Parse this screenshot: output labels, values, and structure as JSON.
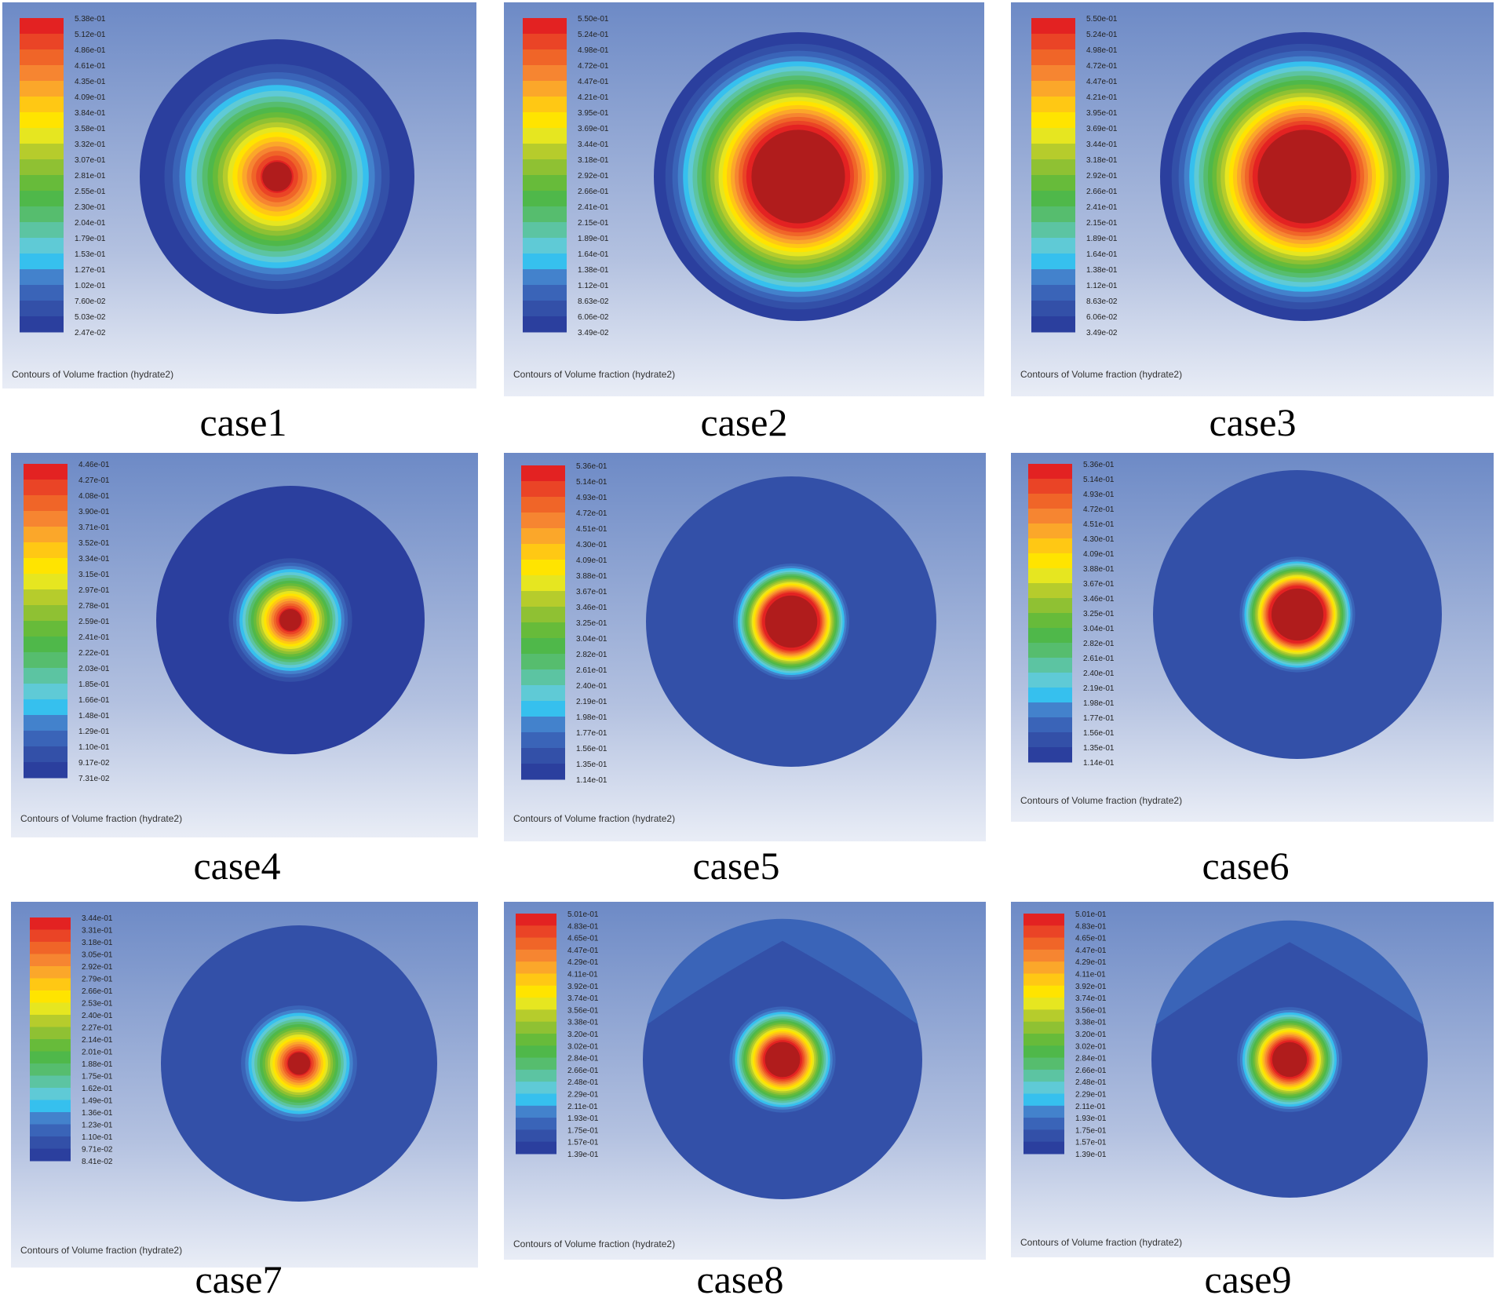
{
  "footer_text": "Contours of Volume fraction (hydrate2)",
  "colormap": [
    "#2b3f9e",
    "#3350a8",
    "#3a64b8",
    "#4382cc",
    "#36c0ee",
    "#5fcad6",
    "#5cc4a2",
    "#56bd6e",
    "#4fb84a",
    "#67bb3a",
    "#8fc133",
    "#b6cc2c",
    "#e6e620",
    "#ffe400",
    "#ffc814",
    "#fba72a",
    "#f68531",
    "#f06528",
    "#ea4426",
    "#e32222"
  ],
  "colors": {
    "outside_field": "#2a3b94",
    "panel_top": "#6d8ac6",
    "panel_bottom": "#e9edf6",
    "core": "#b01c1c"
  },
  "panels": [
    {
      "title": "case1",
      "legend": [
        "5.38e-01",
        "5.12e-01",
        "4.86e-01",
        "4.61e-01",
        "4.35e-01",
        "4.09e-01",
        "3.84e-01",
        "3.58e-01",
        "3.32e-01",
        "3.07e-01",
        "2.81e-01",
        "2.55e-01",
        "2.30e-01",
        "2.04e-01",
        "1.79e-01",
        "1.53e-01",
        "1.27e-01",
        "1.02e-01",
        "7.60e-02",
        "5.03e-02",
        "2.47e-02"
      ],
      "core_fraction": 0.12,
      "plume_fraction": 0.82,
      "outer_field_level": 0
    },
    {
      "title": "case2",
      "legend": [
        "5.50e-01",
        "5.24e-01",
        "4.98e-01",
        "4.72e-01",
        "4.47e-01",
        "4.21e-01",
        "3.95e-01",
        "3.69e-01",
        "3.44e-01",
        "3.18e-01",
        "2.92e-01",
        "2.66e-01",
        "2.41e-01",
        "2.15e-01",
        "1.89e-01",
        "1.64e-01",
        "1.38e-01",
        "1.12e-01",
        "8.63e-02",
        "6.06e-02",
        "3.49e-02"
      ],
      "core_fraction": 0.36,
      "plume_fraction": 0.92,
      "outer_field_level": 0
    },
    {
      "title": "case3",
      "legend": [
        "5.50e-01",
        "5.24e-01",
        "4.98e-01",
        "4.72e-01",
        "4.47e-01",
        "4.21e-01",
        "3.95e-01",
        "3.69e-01",
        "3.44e-01",
        "3.18e-01",
        "2.92e-01",
        "2.66e-01",
        "2.41e-01",
        "2.15e-01",
        "1.89e-01",
        "1.64e-01",
        "1.38e-01",
        "1.12e-01",
        "8.63e-02",
        "6.06e-02",
        "3.49e-02"
      ],
      "core_fraction": 0.36,
      "plume_fraction": 0.92,
      "outer_field_level": 0
    },
    {
      "title": "case4",
      "legend": [
        "4.46e-01",
        "4.27e-01",
        "4.08e-01",
        "3.90e-01",
        "3.71e-01",
        "3.52e-01",
        "3.34e-01",
        "3.15e-01",
        "2.97e-01",
        "2.78e-01",
        "2.59e-01",
        "2.41e-01",
        "2.22e-01",
        "2.03e-01",
        "1.85e-01",
        "1.66e-01",
        "1.48e-01",
        "1.29e-01",
        "1.10e-01",
        "9.17e-02",
        "7.31e-02"
      ],
      "core_fraction": 0.09,
      "plume_fraction": 0.46,
      "outer_field_level": 0
    },
    {
      "title": "case5",
      "legend": [
        "5.36e-01",
        "5.14e-01",
        "4.93e-01",
        "4.72e-01",
        "4.51e-01",
        "4.30e-01",
        "4.09e-01",
        "3.88e-01",
        "3.67e-01",
        "3.46e-01",
        "3.25e-01",
        "3.04e-01",
        "2.82e-01",
        "2.61e-01",
        "2.40e-01",
        "2.19e-01",
        "1.98e-01",
        "1.77e-01",
        "1.56e-01",
        "1.35e-01",
        "1.14e-01"
      ],
      "core_fraction": 0.2,
      "plume_fraction": 0.4,
      "outer_field_level": 1
    },
    {
      "title": "case6",
      "legend": [
        "5.36e-01",
        "5.14e-01",
        "4.93e-01",
        "4.72e-01",
        "4.51e-01",
        "4.30e-01",
        "4.09e-01",
        "3.88e-01",
        "3.67e-01",
        "3.46e-01",
        "3.25e-01",
        "3.04e-01",
        "2.82e-01",
        "2.61e-01",
        "2.40e-01",
        "2.19e-01",
        "1.98e-01",
        "1.77e-01",
        "1.56e-01",
        "1.35e-01",
        "1.14e-01"
      ],
      "core_fraction": 0.2,
      "plume_fraction": 0.4,
      "outer_field_level": 1
    },
    {
      "title": "case7",
      "legend": [
        "3.44e-01",
        "3.31e-01",
        "3.18e-01",
        "3.05e-01",
        "2.92e-01",
        "2.79e-01",
        "2.66e-01",
        "2.53e-01",
        "2.40e-01",
        "2.27e-01",
        "2.14e-01",
        "2.01e-01",
        "1.88e-01",
        "1.75e-01",
        "1.62e-01",
        "1.49e-01",
        "1.36e-01",
        "1.23e-01",
        "1.10e-01",
        "9.71e-02",
        "8.41e-02"
      ],
      "core_fraction": 0.09,
      "plume_fraction": 0.42,
      "outer_field_level": 1
    },
    {
      "title": "case8",
      "legend": [
        "5.01e-01",
        "4.83e-01",
        "4.65e-01",
        "4.47e-01",
        "4.29e-01",
        "4.11e-01",
        "3.92e-01",
        "3.74e-01",
        "3.56e-01",
        "3.38e-01",
        "3.20e-01",
        "3.02e-01",
        "2.84e-01",
        "2.66e-01",
        "2.48e-01",
        "2.29e-01",
        "2.11e-01",
        "1.93e-01",
        "1.75e-01",
        "1.57e-01",
        "1.39e-01"
      ],
      "core_fraction": 0.14,
      "plume_fraction": 0.38,
      "outer_field_level": 1,
      "cap_level": 2
    },
    {
      "title": "case9",
      "legend": [
        "5.01e-01",
        "4.83e-01",
        "4.65e-01",
        "4.47e-01",
        "4.29e-01",
        "4.11e-01",
        "3.92e-01",
        "3.74e-01",
        "3.56e-01",
        "3.38e-01",
        "3.20e-01",
        "3.02e-01",
        "2.84e-01",
        "2.66e-01",
        "2.48e-01",
        "2.29e-01",
        "2.11e-01",
        "1.93e-01",
        "1.75e-01",
        "1.57e-01",
        "1.39e-01"
      ],
      "core_fraction": 0.14,
      "plume_fraction": 0.38,
      "outer_field_level": 1,
      "cap_level": 2
    }
  ]
}
